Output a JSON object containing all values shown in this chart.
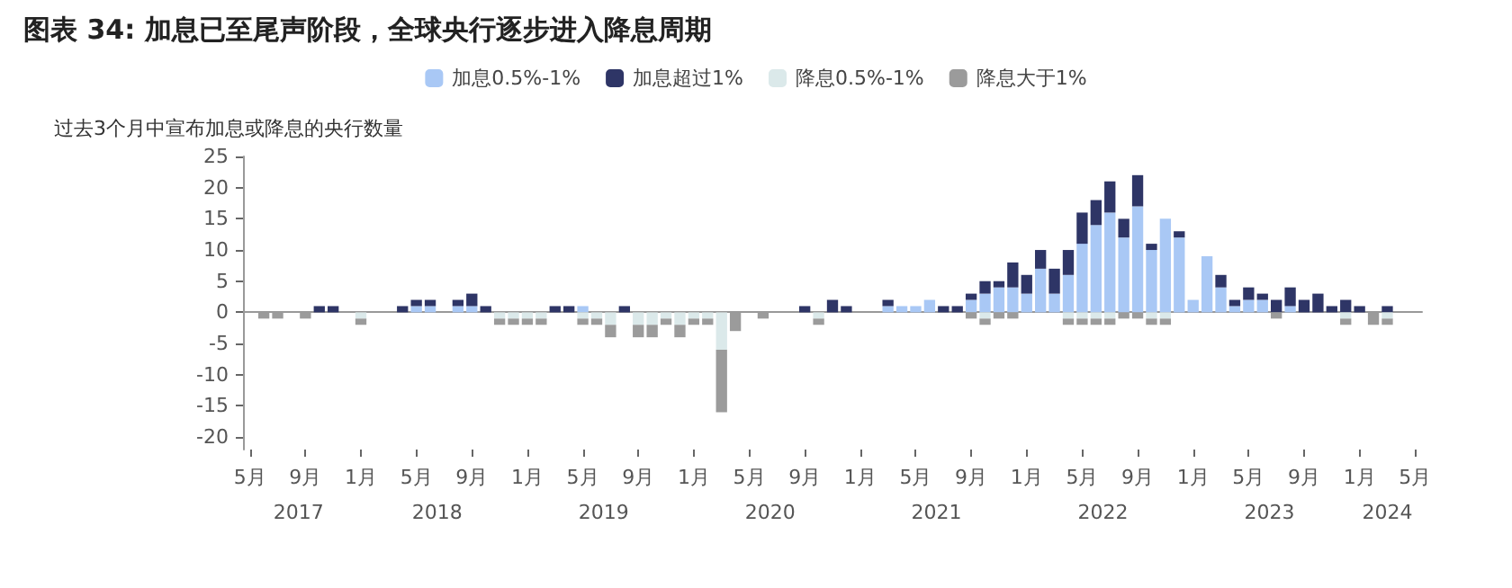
{
  "chart_data": {
    "type": "bar",
    "title": "图表 34: 加息已至尾声阶段，全球央行逐步进入降息周期",
    "ylabel": "过去3个月中宣布加息或降息的央行数量",
    "categories": [
      "5月",
      null,
      null,
      null,
      "9月",
      null,
      null,
      null,
      "1月",
      null,
      null,
      null,
      "5月",
      null,
      null,
      null,
      "9月",
      null,
      null,
      null,
      "1月",
      null,
      null,
      null,
      "5月",
      null,
      null,
      null,
      "9月",
      null,
      null,
      null,
      "1月",
      null,
      null,
      null,
      "5月",
      null,
      null,
      null,
      "9月",
      null,
      null,
      null,
      "1月",
      null,
      null,
      null,
      "5月",
      null,
      null,
      null,
      "9月",
      null,
      null,
      null,
      "1月",
      null,
      null,
      null,
      "5月",
      null,
      null,
      null,
      "9月",
      null,
      null,
      null,
      "1月",
      null,
      null,
      null,
      "5月",
      null,
      null,
      null,
      "9月",
      null,
      null,
      null,
      "1月",
      null,
      null,
      null,
      "5月"
    ],
    "annotations": [
      "2017",
      "2018",
      "2019",
      "2020",
      "2021",
      "2022",
      "2023",
      "2024"
    ],
    "stacked": true,
    "legend": "top",
    "ylim": [
      -22,
      25
    ],
    "yticks": [
      -20,
      -15,
      -10,
      -5,
      0,
      5,
      10,
      15,
      20,
      25
    ],
    "series": [
      {
        "name": "加息0.5%-1%",
        "color": "#a9c8f5",
        "values": [
          null,
          null,
          null,
          null,
          null,
          null,
          null,
          null,
          null,
          null,
          null,
          null,
          1,
          1,
          null,
          1,
          1,
          null,
          null,
          null,
          null,
          null,
          null,
          null,
          1,
          null,
          null,
          null,
          null,
          null,
          null,
          null,
          null,
          null,
          null,
          null,
          null,
          null,
          null,
          null,
          null,
          null,
          null,
          null,
          null,
          null,
          1,
          1,
          1,
          2,
          null,
          null,
          2,
          3,
          4,
          4,
          3,
          7,
          3,
          6,
          11,
          14,
          16,
          12,
          17,
          10,
          15,
          12,
          2,
          9,
          4,
          1,
          2,
          2,
          null,
          1,
          null,
          null,
          null,
          null,
          null,
          null,
          null,
          null,
          null
        ]
      },
      {
        "name": "加息超过1%",
        "color": "#2e3566",
        "values": [
          null,
          null,
          null,
          null,
          null,
          1,
          1,
          null,
          null,
          null,
          null,
          1,
          1,
          1,
          null,
          1,
          2,
          1,
          null,
          null,
          null,
          null,
          1,
          1,
          null,
          null,
          null,
          1,
          null,
          null,
          null,
          null,
          null,
          null,
          null,
          null,
          null,
          null,
          null,
          null,
          1,
          null,
          2,
          1,
          null,
          null,
          1,
          null,
          null,
          null,
          1,
          1,
          1,
          2,
          1,
          4,
          3,
          3,
          4,
          4,
          5,
          4,
          5,
          3,
          5,
          1,
          null,
          1,
          null,
          null,
          2,
          1,
          2,
          1,
          2,
          3,
          2,
          3,
          1,
          2,
          1,
          null,
          1,
          null,
          null
        ]
      },
      {
        "name": "降息0.5%-1%",
        "color": "#dbe9ea",
        "values": [
          null,
          null,
          null,
          null,
          null,
          null,
          null,
          null,
          -1,
          null,
          null,
          null,
          null,
          null,
          null,
          null,
          null,
          null,
          -1,
          -1,
          -1,
          -1,
          null,
          null,
          -1,
          -1,
          -2,
          null,
          -2,
          -2,
          -1,
          -2,
          -1,
          -1,
          -6,
          null,
          null,
          null,
          null,
          null,
          null,
          -1,
          null,
          null,
          null,
          null,
          null,
          null,
          null,
          null,
          null,
          null,
          null,
          -1,
          null,
          null,
          null,
          null,
          null,
          -1,
          -1,
          -1,
          -1,
          null,
          null,
          -1,
          -1,
          null,
          null,
          null,
          null,
          null,
          null,
          null,
          null,
          null,
          null,
          null,
          null,
          -1,
          null,
          null,
          -1,
          null,
          null
        ]
      },
      {
        "name": "降息大于1%",
        "color": "#9b9b9b",
        "values": [
          null,
          -1,
          -1,
          null,
          -1,
          null,
          null,
          null,
          -1,
          null,
          null,
          null,
          null,
          null,
          null,
          null,
          null,
          null,
          -1,
          -1,
          -1,
          -1,
          null,
          null,
          -1,
          -1,
          -2,
          null,
          -2,
          -2,
          -1,
          -2,
          -1,
          -1,
          -10,
          -3,
          null,
          -1,
          null,
          null,
          null,
          -1,
          null,
          null,
          null,
          null,
          null,
          null,
          null,
          null,
          null,
          null,
          -1,
          -1,
          -1,
          -1,
          null,
          null,
          null,
          -1,
          -1,
          -1,
          -1,
          -1,
          -1,
          -1,
          -1,
          null,
          null,
          null,
          null,
          null,
          null,
          null,
          -1,
          null,
          null,
          null,
          null,
          -1,
          null,
          -2,
          -1,
          null,
          null
        ]
      }
    ]
  }
}
